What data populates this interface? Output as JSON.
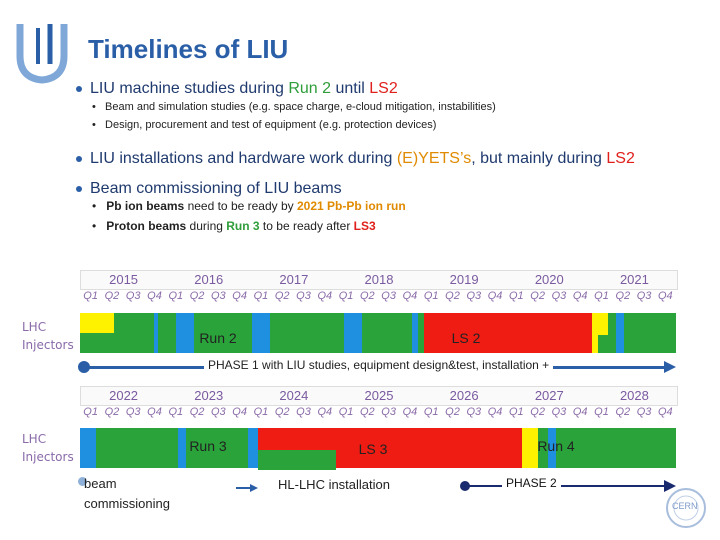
{
  "slide": {
    "title": "Timelines of LIU",
    "bullets": [
      {
        "pre": "LIU machine studies during ",
        "h1": "Run 2",
        "mid": " until ",
        "h2": "LS2",
        "subs": [
          "Beam and simulation studies (e.g. space charge, e-cloud mitigation, instabilities)",
          "Design, procurement and test of equipment (e.g. protection devices)"
        ]
      },
      {
        "pre": "LIU installations and hardware work during ",
        "h1": "(E)YETS’s",
        "mid": ", but mainly during ",
        "h2": "LS2"
      },
      {
        "pre": "Beam commissioning of LIU beams",
        "sub1": {
          "a": "Pb ion beams",
          "b": " need to be ready by ",
          "c": "2021 Pb-Pb ion run"
        },
        "sub2": {
          "a": "Proton beams",
          "b": " during ",
          "c": "Run 3",
          "d": " to be ready after ",
          "e": "LS3"
        }
      }
    ]
  },
  "timeline1": {
    "years": [
      "2015",
      "2016",
      "2017",
      "2018",
      "2019",
      "2020",
      "2021"
    ],
    "quarters": [
      "Q1",
      "Q2",
      "Q3",
      "Q4"
    ],
    "row_label": "LHC Injectors",
    "run_label": "Run 2",
    "ls_label": "LS 2",
    "phase_text": "PHASE 1 with LIU studies, equipment design&test, installation +"
  },
  "timeline2": {
    "years": [
      "2022",
      "2023",
      "2024",
      "2025",
      "2026",
      "2027",
      "2028"
    ],
    "quarters": [
      "Q1",
      "Q2",
      "Q3",
      "Q4"
    ],
    "row_label": "LHC Injectors",
    "run3_label": "Run 3",
    "ls3_label": "LS 3",
    "run4_label": "Run 4"
  },
  "legend": {
    "commissioning": "beam commissioning",
    "hl_lhc": "HL-LHC installation",
    "phase2": "PHASE 2",
    "logo_text": "CERN"
  },
  "colors": {
    "green": "#2aa33a",
    "blue": "#1f8fe0",
    "red": "#ee1c12",
    "yellow": "#fff200",
    "title": "#2a5fa8"
  }
}
